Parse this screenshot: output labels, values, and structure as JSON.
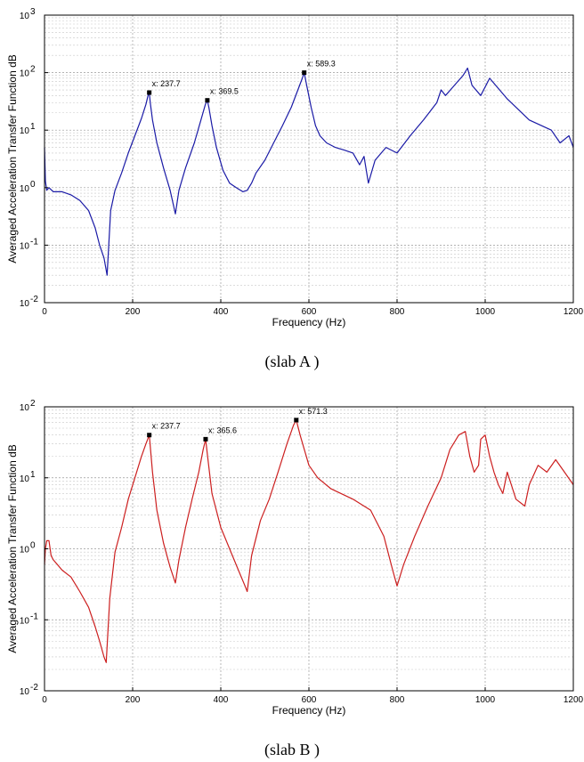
{
  "charts": [
    {
      "type": "line",
      "caption": "(slab A )",
      "xlabel": "Frequency (Hz)",
      "ylabel": "Averaged Acceleration Transfer Function dB",
      "xlim": [
        0,
        1200
      ],
      "ylim_exp": [
        -2,
        3
      ],
      "yscale": "log",
      "grid": true,
      "line_color": "#1a1aa6",
      "x_ticks": [
        "0",
        "200",
        "400",
        "600",
        "800",
        "1000",
        "1200"
      ],
      "y_ticks": [
        "10",
        "10",
        "10",
        "10",
        "10",
        "10"
      ],
      "y_tick_exps": [
        "-2",
        "-1",
        "0",
        "1",
        "2",
        "3"
      ],
      "annotations": [
        {
          "label": "x: 237.7",
          "x": 237.7,
          "y": 45
        },
        {
          "label": "x: 369.5",
          "x": 369.5,
          "y": 33
        },
        {
          "label": "x: 589.3",
          "x": 589.3,
          "y": 100
        }
      ]
    },
    {
      "type": "line",
      "caption": "(slab B )",
      "xlabel": "Frequency (Hz)",
      "ylabel": "Averaged Acceleration Transfer Function dB",
      "xlim": [
        0,
        1200
      ],
      "ylim_exp": [
        -2,
        2
      ],
      "yscale": "log",
      "grid": true,
      "line_color": "#cc1f1f",
      "x_ticks": [
        "0",
        "200",
        "400",
        "600",
        "800",
        "1000",
        "1200"
      ],
      "y_ticks": [
        "10",
        "10",
        "10",
        "10",
        "10"
      ],
      "y_tick_exps": [
        "-2",
        "-1",
        "0",
        "1",
        "2"
      ],
      "annotations": [
        {
          "label": "x: 237.7",
          "x": 237.7,
          "y": 40
        },
        {
          "label": "x: 365.6",
          "x": 365.6,
          "y": 35
        },
        {
          "label": "x: 571.3",
          "x": 571.3,
          "y": 65
        }
      ]
    }
  ],
  "chart_data": [
    {
      "type": "line",
      "xlabel": "Frequency (Hz)",
      "ylabel": "Averaged Acceleration Transfer Function dB",
      "xlim": [
        0,
        1200
      ],
      "ylim": [
        0.01,
        1000
      ],
      "yscale": "log",
      "series": [
        {
          "x": [
            0,
            2,
            5,
            10,
            20,
            40,
            60,
            80,
            100,
            115,
            125,
            135,
            142,
            150,
            160,
            175,
            190,
            205,
            220,
            230,
            235,
            237.7,
            240,
            245,
            255,
            270,
            285,
            297,
            305,
            320,
            340,
            355,
            365,
            369.5,
            373,
            380,
            390,
            405,
            420,
            435,
            450,
            460,
            470,
            480,
            500,
            520,
            540,
            560,
            575,
            585,
            589.3,
            595,
            605,
            615,
            625,
            640,
            660,
            680,
            700,
            715,
            725,
            735,
            750,
            775,
            800,
            830,
            860,
            890,
            900,
            910,
            930,
            950,
            960,
            970,
            990,
            1010,
            1050,
            1100,
            1150,
            1170,
            1190,
            1200
          ],
          "y": [
            5,
            1.3,
            0.9,
            1.0,
            0.85,
            0.85,
            0.75,
            0.6,
            0.4,
            0.2,
            0.1,
            0.06,
            0.03,
            0.4,
            0.9,
            1.8,
            4,
            8,
            16,
            28,
            40,
            45,
            30,
            15,
            6,
            2.2,
            0.9,
            0.35,
            0.9,
            2.2,
            6,
            15,
            28,
            33,
            25,
            12,
            5,
            2,
            1.2,
            1,
            0.85,
            0.9,
            1.2,
            1.8,
            3,
            6,
            12,
            25,
            50,
            80,
            100,
            60,
            25,
            12,
            8,
            6,
            5,
            4.5,
            4,
            2.5,
            3.5,
            1.2,
            3,
            5,
            4,
            8,
            15,
            30,
            50,
            40,
            60,
            90,
            120,
            60,
            40,
            80,
            35,
            15,
            10,
            6,
            8,
            5
          ]
        }
      ],
      "annotations": [
        {
          "label": "x: 237.7",
          "x": 237.7,
          "y": 45
        },
        {
          "label": "x: 369.5",
          "x": 369.5,
          "y": 33
        },
        {
          "label": "x: 589.3",
          "x": 589.3,
          "y": 100
        }
      ]
    },
    {
      "type": "line",
      "xlabel": "Frequency (Hz)",
      "ylabel": "Averaged Acceleration Transfer Function dB",
      "xlim": [
        0,
        1200
      ],
      "ylim": [
        0.01,
        100
      ],
      "yscale": "log",
      "series": [
        {
          "x": [
            0,
            2,
            5,
            10,
            15,
            20,
            40,
            60,
            80,
            100,
            115,
            125,
            135,
            140,
            148,
            160,
            175,
            190,
            205,
            220,
            230,
            237.7,
            245,
            255,
            270,
            285,
            297,
            305,
            320,
            335,
            350,
            360,
            365.6,
            370,
            380,
            400,
            420,
            440,
            455,
            460,
            470,
            490,
            510,
            530,
            550,
            565,
            571.3,
            580,
            600,
            620,
            650,
            700,
            740,
            770,
            790,
            800,
            815,
            840,
            870,
            900,
            920,
            940,
            955,
            965,
            975,
            985,
            990,
            1000,
            1010,
            1020,
            1030,
            1040,
            1050,
            1070,
            1090,
            1100,
            1120,
            1140,
            1160,
            1180,
            1200
          ],
          "y": [
            0.6,
            1.0,
            1.3,
            1.3,
            0.8,
            0.7,
            0.5,
            0.4,
            0.25,
            0.15,
            0.08,
            0.05,
            0.03,
            0.025,
            0.2,
            0.9,
            2,
            5,
            10,
            20,
            30,
            40,
            12,
            3.5,
            1.2,
            0.55,
            0.33,
            0.7,
            2,
            5,
            12,
            25,
            35,
            20,
            6,
            2,
            1,
            0.5,
            0.3,
            0.25,
            0.8,
            2.5,
            5,
            12,
            30,
            55,
            65,
            40,
            15,
            10,
            7,
            5,
            3.5,
            1.5,
            0.5,
            0.3,
            0.6,
            1.5,
            4,
            10,
            25,
            40,
            45,
            20,
            12,
            15,
            35,
            40,
            20,
            12,
            8,
            6,
            12,
            5,
            4,
            8,
            15,
            12,
            18,
            12,
            8
          ]
        }
      ],
      "annotations": [
        {
          "label": "x: 237.7",
          "x": 237.7,
          "y": 40
        },
        {
          "label": "x: 365.6",
          "x": 365.6,
          "y": 35
        },
        {
          "label": "x: 571.3",
          "x": 571.3,
          "y": 65
        }
      ]
    }
  ]
}
